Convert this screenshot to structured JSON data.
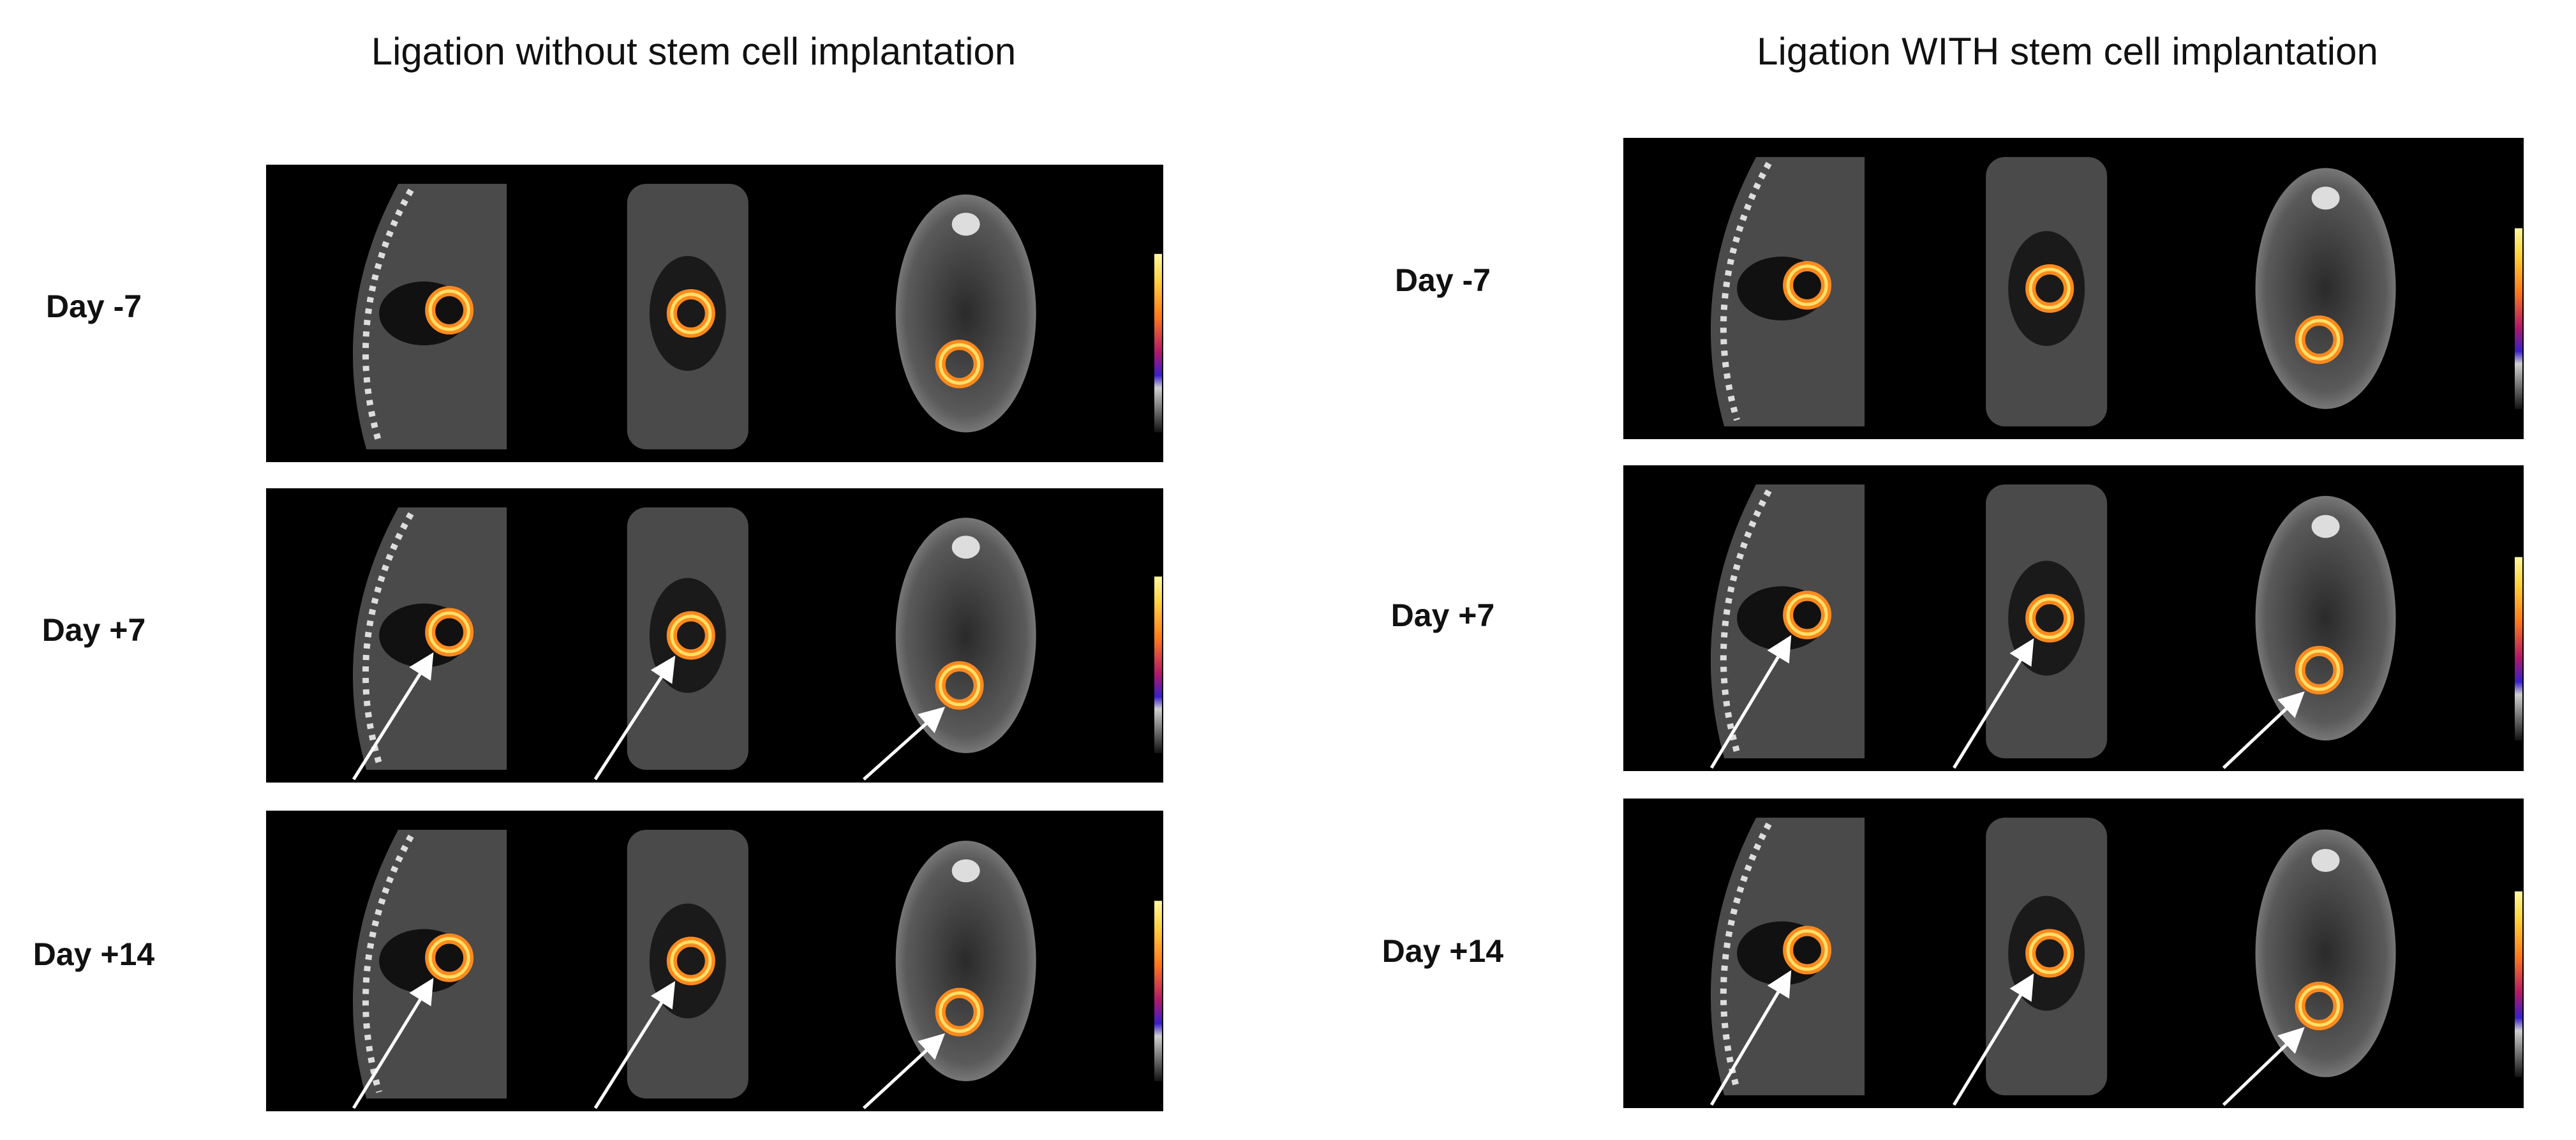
{
  "panels": [
    {
      "title": "Ligation without stem cell implantation",
      "rows": [
        {
          "label": "Day -7"
        },
        {
          "label": "Day +7"
        },
        {
          "label": "Day +14"
        }
      ]
    },
    {
      "title": "Ligation WITH stem cell implantation",
      "rows": [
        {
          "label": "Day -7"
        },
        {
          "label": "Day +7"
        },
        {
          "label": "Day +14"
        }
      ]
    }
  ]
}
